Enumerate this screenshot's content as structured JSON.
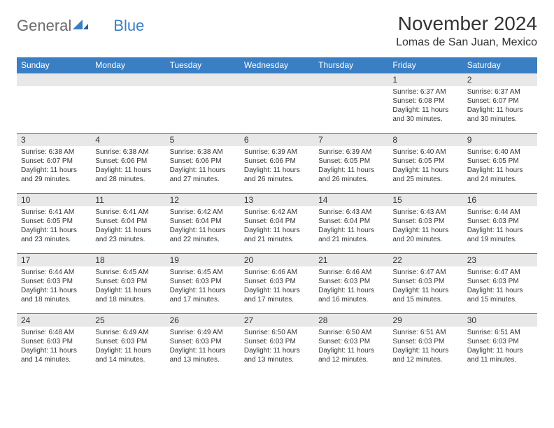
{
  "logo": {
    "word1": "General",
    "word2": "Blue"
  },
  "title": "November 2024",
  "location": "Lomas de San Juan, Mexico",
  "colors": {
    "header_bg": "#3a7fc4",
    "header_text": "#ffffff",
    "daynum_bg": "#e8e8e8",
    "text": "#333333",
    "row_border": "#3a7fc4",
    "logo_gray": "#6b6b6b",
    "logo_blue": "#3a7fc4"
  },
  "day_headers": [
    "Sunday",
    "Monday",
    "Tuesday",
    "Wednesday",
    "Thursday",
    "Friday",
    "Saturday"
  ],
  "weeks": [
    [
      {
        "n": "",
        "sr": "",
        "ss": "",
        "dl": ""
      },
      {
        "n": "",
        "sr": "",
        "ss": "",
        "dl": ""
      },
      {
        "n": "",
        "sr": "",
        "ss": "",
        "dl": ""
      },
      {
        "n": "",
        "sr": "",
        "ss": "",
        "dl": ""
      },
      {
        "n": "",
        "sr": "",
        "ss": "",
        "dl": ""
      },
      {
        "n": "1",
        "sr": "Sunrise: 6:37 AM",
        "ss": "Sunset: 6:08 PM",
        "dl": "Daylight: 11 hours and 30 minutes."
      },
      {
        "n": "2",
        "sr": "Sunrise: 6:37 AM",
        "ss": "Sunset: 6:07 PM",
        "dl": "Daylight: 11 hours and 30 minutes."
      }
    ],
    [
      {
        "n": "3",
        "sr": "Sunrise: 6:38 AM",
        "ss": "Sunset: 6:07 PM",
        "dl": "Daylight: 11 hours and 29 minutes."
      },
      {
        "n": "4",
        "sr": "Sunrise: 6:38 AM",
        "ss": "Sunset: 6:06 PM",
        "dl": "Daylight: 11 hours and 28 minutes."
      },
      {
        "n": "5",
        "sr": "Sunrise: 6:38 AM",
        "ss": "Sunset: 6:06 PM",
        "dl": "Daylight: 11 hours and 27 minutes."
      },
      {
        "n": "6",
        "sr": "Sunrise: 6:39 AM",
        "ss": "Sunset: 6:06 PM",
        "dl": "Daylight: 11 hours and 26 minutes."
      },
      {
        "n": "7",
        "sr": "Sunrise: 6:39 AM",
        "ss": "Sunset: 6:05 PM",
        "dl": "Daylight: 11 hours and 26 minutes."
      },
      {
        "n": "8",
        "sr": "Sunrise: 6:40 AM",
        "ss": "Sunset: 6:05 PM",
        "dl": "Daylight: 11 hours and 25 minutes."
      },
      {
        "n": "9",
        "sr": "Sunrise: 6:40 AM",
        "ss": "Sunset: 6:05 PM",
        "dl": "Daylight: 11 hours and 24 minutes."
      }
    ],
    [
      {
        "n": "10",
        "sr": "Sunrise: 6:41 AM",
        "ss": "Sunset: 6:05 PM",
        "dl": "Daylight: 11 hours and 23 minutes."
      },
      {
        "n": "11",
        "sr": "Sunrise: 6:41 AM",
        "ss": "Sunset: 6:04 PM",
        "dl": "Daylight: 11 hours and 23 minutes."
      },
      {
        "n": "12",
        "sr": "Sunrise: 6:42 AM",
        "ss": "Sunset: 6:04 PM",
        "dl": "Daylight: 11 hours and 22 minutes."
      },
      {
        "n": "13",
        "sr": "Sunrise: 6:42 AM",
        "ss": "Sunset: 6:04 PM",
        "dl": "Daylight: 11 hours and 21 minutes."
      },
      {
        "n": "14",
        "sr": "Sunrise: 6:43 AM",
        "ss": "Sunset: 6:04 PM",
        "dl": "Daylight: 11 hours and 21 minutes."
      },
      {
        "n": "15",
        "sr": "Sunrise: 6:43 AM",
        "ss": "Sunset: 6:03 PM",
        "dl": "Daylight: 11 hours and 20 minutes."
      },
      {
        "n": "16",
        "sr": "Sunrise: 6:44 AM",
        "ss": "Sunset: 6:03 PM",
        "dl": "Daylight: 11 hours and 19 minutes."
      }
    ],
    [
      {
        "n": "17",
        "sr": "Sunrise: 6:44 AM",
        "ss": "Sunset: 6:03 PM",
        "dl": "Daylight: 11 hours and 18 minutes."
      },
      {
        "n": "18",
        "sr": "Sunrise: 6:45 AM",
        "ss": "Sunset: 6:03 PM",
        "dl": "Daylight: 11 hours and 18 minutes."
      },
      {
        "n": "19",
        "sr": "Sunrise: 6:45 AM",
        "ss": "Sunset: 6:03 PM",
        "dl": "Daylight: 11 hours and 17 minutes."
      },
      {
        "n": "20",
        "sr": "Sunrise: 6:46 AM",
        "ss": "Sunset: 6:03 PM",
        "dl": "Daylight: 11 hours and 17 minutes."
      },
      {
        "n": "21",
        "sr": "Sunrise: 6:46 AM",
        "ss": "Sunset: 6:03 PM",
        "dl": "Daylight: 11 hours and 16 minutes."
      },
      {
        "n": "22",
        "sr": "Sunrise: 6:47 AM",
        "ss": "Sunset: 6:03 PM",
        "dl": "Daylight: 11 hours and 15 minutes."
      },
      {
        "n": "23",
        "sr": "Sunrise: 6:47 AM",
        "ss": "Sunset: 6:03 PM",
        "dl": "Daylight: 11 hours and 15 minutes."
      }
    ],
    [
      {
        "n": "24",
        "sr": "Sunrise: 6:48 AM",
        "ss": "Sunset: 6:03 PM",
        "dl": "Daylight: 11 hours and 14 minutes."
      },
      {
        "n": "25",
        "sr": "Sunrise: 6:49 AM",
        "ss": "Sunset: 6:03 PM",
        "dl": "Daylight: 11 hours and 14 minutes."
      },
      {
        "n": "26",
        "sr": "Sunrise: 6:49 AM",
        "ss": "Sunset: 6:03 PM",
        "dl": "Daylight: 11 hours and 13 minutes."
      },
      {
        "n": "27",
        "sr": "Sunrise: 6:50 AM",
        "ss": "Sunset: 6:03 PM",
        "dl": "Daylight: 11 hours and 13 minutes."
      },
      {
        "n": "28",
        "sr": "Sunrise: 6:50 AM",
        "ss": "Sunset: 6:03 PM",
        "dl": "Daylight: 11 hours and 12 minutes."
      },
      {
        "n": "29",
        "sr": "Sunrise: 6:51 AM",
        "ss": "Sunset: 6:03 PM",
        "dl": "Daylight: 11 hours and 12 minutes."
      },
      {
        "n": "30",
        "sr": "Sunrise: 6:51 AM",
        "ss": "Sunset: 6:03 PM",
        "dl": "Daylight: 11 hours and 11 minutes."
      }
    ]
  ]
}
